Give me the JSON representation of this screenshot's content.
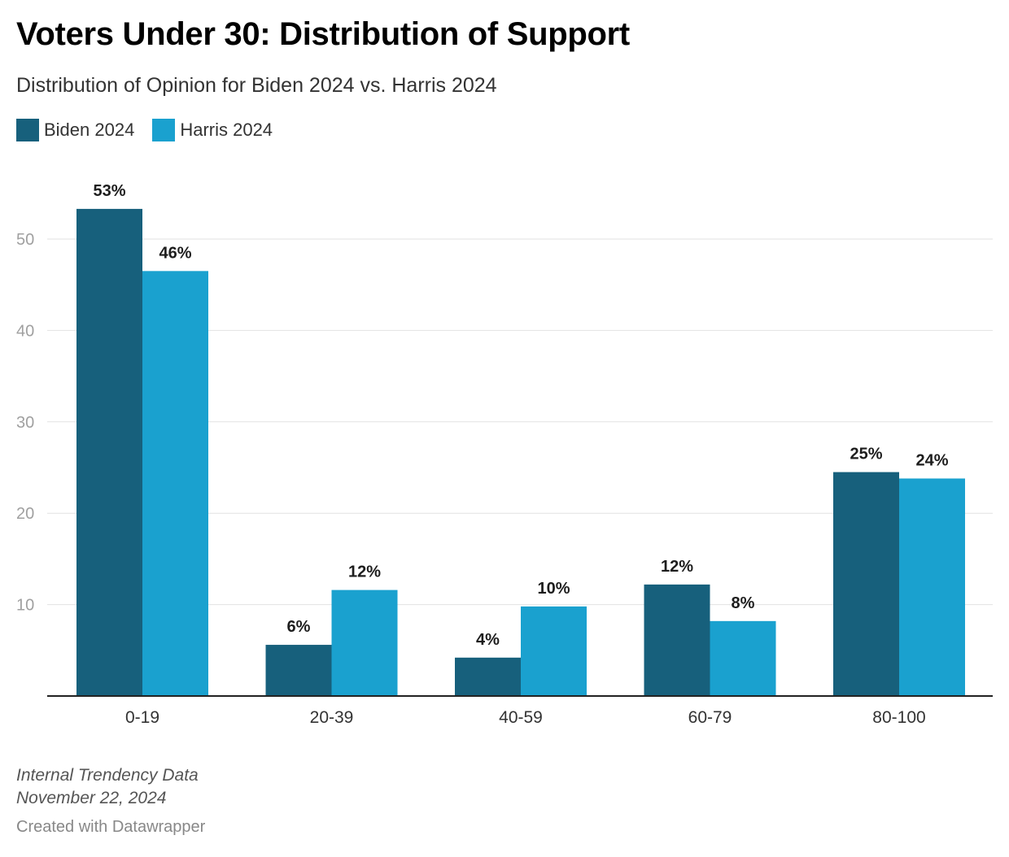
{
  "title": "Voters Under 30: Distribution of Support",
  "subtitle": "Distribution of Opinion for Biden 2024 vs. Harris 2024",
  "legend": [
    {
      "label": "Biden 2024",
      "color": "#17607c"
    },
    {
      "label": "Harris 2024",
      "color": "#1aa1cf"
    }
  ],
  "footer": {
    "source": "Internal Trendency Data",
    "date": "November 22, 2024",
    "credit": "Created with Datawrapper"
  },
  "chart_data": {
    "type": "bar",
    "categories": [
      "0-19",
      "20-39",
      "40-59",
      "60-79",
      "80-100"
    ],
    "series": [
      {
        "name": "Biden 2024",
        "values": [
          53.3,
          5.6,
          4.2,
          12.2,
          24.5
        ],
        "labels": [
          "53%",
          "6%",
          "4%",
          "12%",
          "25%"
        ],
        "color": "#17607c"
      },
      {
        "name": "Harris 2024",
        "values": [
          46.5,
          11.6,
          9.8,
          8.2,
          23.8
        ],
        "labels": [
          "46%",
          "12%",
          "10%",
          "8%",
          "24%"
        ],
        "color": "#1aa1cf"
      }
    ],
    "yticks": [
      10,
      20,
      30,
      40,
      50
    ],
    "ylim": [
      0,
      60
    ],
    "grid": true,
    "legend_position": "top-left"
  }
}
